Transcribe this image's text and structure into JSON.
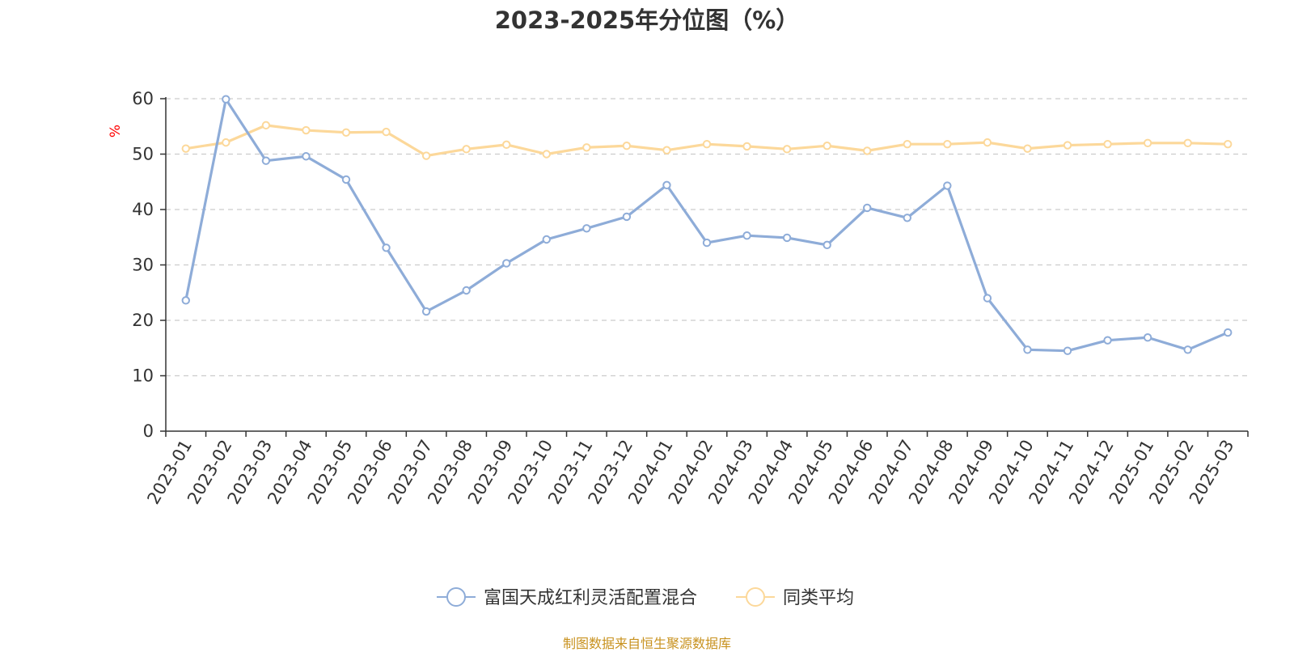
{
  "chart_data": {
    "type": "line",
    "title": "2023-2025年分位图（%）",
    "ylabel": "%",
    "xlabel": "",
    "ylim": [
      0,
      60
    ],
    "yticks": [
      0,
      10,
      20,
      30,
      40,
      50,
      60
    ],
    "grid": true,
    "legend_position": "bottom-center",
    "categories": [
      "2023-01",
      "2023-02",
      "2023-03",
      "2023-04",
      "2023-05",
      "2023-06",
      "2023-07",
      "2023-08",
      "2023-09",
      "2023-10",
      "2023-11",
      "2023-12",
      "2024-01",
      "2024-02",
      "2024-03",
      "2024-04",
      "2024-05",
      "2024-06",
      "2024-07",
      "2024-08",
      "2024-09",
      "2024-10",
      "2024-11",
      "2024-12",
      "2025-01",
      "2025-02",
      "2025-03"
    ],
    "series": [
      {
        "name": "富国天成红利灵活配置混合",
        "color": "#8eacd8",
        "values": [
          23.6,
          59.9,
          48.8,
          49.6,
          45.4,
          33.1,
          21.6,
          25.4,
          30.3,
          34.6,
          36.6,
          38.7,
          44.4,
          34.0,
          35.3,
          34.9,
          33.6,
          40.3,
          38.5,
          44.3,
          24.0,
          14.7,
          14.5,
          16.4,
          16.9,
          14.7,
          17.8
        ]
      },
      {
        "name": "同类平均",
        "color": "#fcd89a",
        "values": [
          51.0,
          52.1,
          55.2,
          54.3,
          53.9,
          54.0,
          49.7,
          50.9,
          51.7,
          50.0,
          51.2,
          51.5,
          50.7,
          51.8,
          51.4,
          50.9,
          51.5,
          50.6,
          51.8,
          51.8,
          52.1,
          51.0,
          51.6,
          51.8,
          52.0,
          52.0,
          51.8
        ]
      }
    ]
  },
  "footer": {
    "source": "制图数据来自恒生聚源数据库",
    "source_color": "#c8921f"
  },
  "colors": {
    "axis": "#333333",
    "grid": "#cccccc",
    "ylabel": "#ff0000"
  }
}
